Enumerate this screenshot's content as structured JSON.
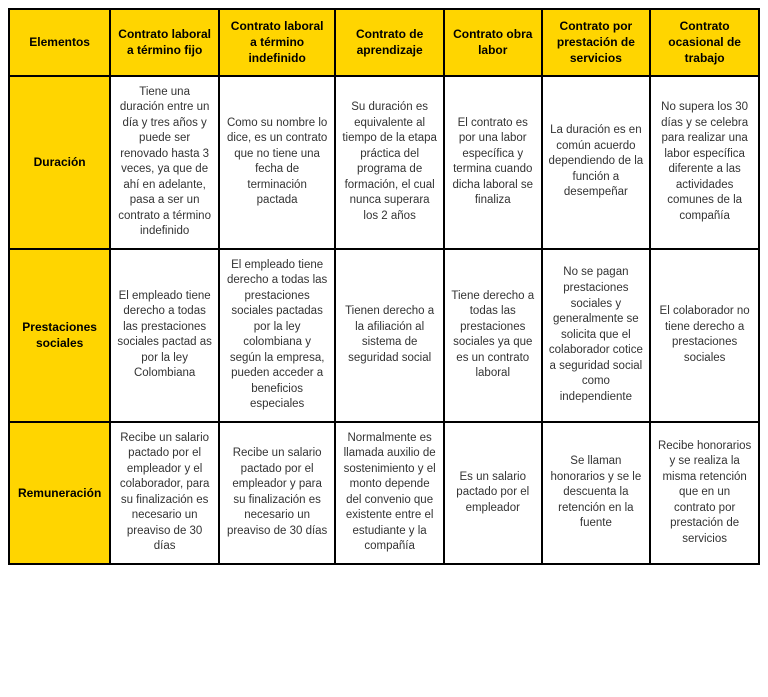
{
  "table": {
    "corner": "Elementos",
    "columns": [
      "Contrato laboral a término fijo",
      "Contrato laboral a término indefinido",
      "Contrato de aprendizaje",
      "Contrato obra labor",
      "Contrato por prestación de servicios",
      "Contrato ocasional de trabajo"
    ],
    "rows": [
      {
        "label": "Duración",
        "cells": [
          "Tiene una duración entre un día y tres años y puede ser renovado hasta 3 veces, ya que de ahí en adelante, pasa a ser un contrato a término indefinido",
          "Como su nombre lo dice, es un contrato que no tiene una fecha de terminación pactada",
          "Su duración es equivalente al tiempo de la etapa práctica del programa de formación, el cual nunca superara los 2 años",
          "El contrato es por una labor específica y termina cuando dicha laboral se finaliza",
          "La duración es en común acuerdo dependiendo de la función a desempeñar",
          "No supera los 30 días y se celebra para realizar una labor específica diferente a las actividades comunes de la compañía"
        ]
      },
      {
        "label": "Prestaciones sociales",
        "cells": [
          "El empleado tiene derecho a todas las prestaciones sociales pactad as por la ley Colombiana",
          "El empleado tiene derecho a todas las prestaciones sociales pactadas por la ley colombiana y según la empresa, pueden acceder a beneficios especiales",
          "Tienen derecho a la afiliación al sistema de seguridad social",
          "Tiene derecho a todas las prestaciones sociales ya que es un contrato laboral",
          "No se pagan prestaciones sociales y generalmente se solicita que el colaborador cotice a seguridad social como independiente",
          "El colaborador no tiene derecho a prestaciones sociales"
        ]
      },
      {
        "label": "Remuneración",
        "cells": [
          "Recibe un salario pactado por el empleador y el colaborador, para su finalización es necesario un preaviso de 30 días",
          "Recibe un salario pactado por el empleador y para su finalización es necesario un preaviso de 30 días",
          "Normalmente es llamada auxilio de sostenimiento y el monto depende del convenio que existente entre el estudiante y la compañía",
          "Es un salario pactado por el empleador",
          "Se llaman honorarios y se le descuenta la retención en la fuente",
          "Recibe honorarios y se realiza la misma retención que en un contrato por prestación de servicios"
        ]
      }
    ],
    "colors": {
      "header_bg": "#ffd500",
      "cell_bg": "#ffffff",
      "border": "#000000",
      "text": "#333333"
    },
    "typography": {
      "header_fontsize_pt": 9,
      "cell_fontsize_pt": 8.5,
      "font_family": "Arial"
    }
  }
}
